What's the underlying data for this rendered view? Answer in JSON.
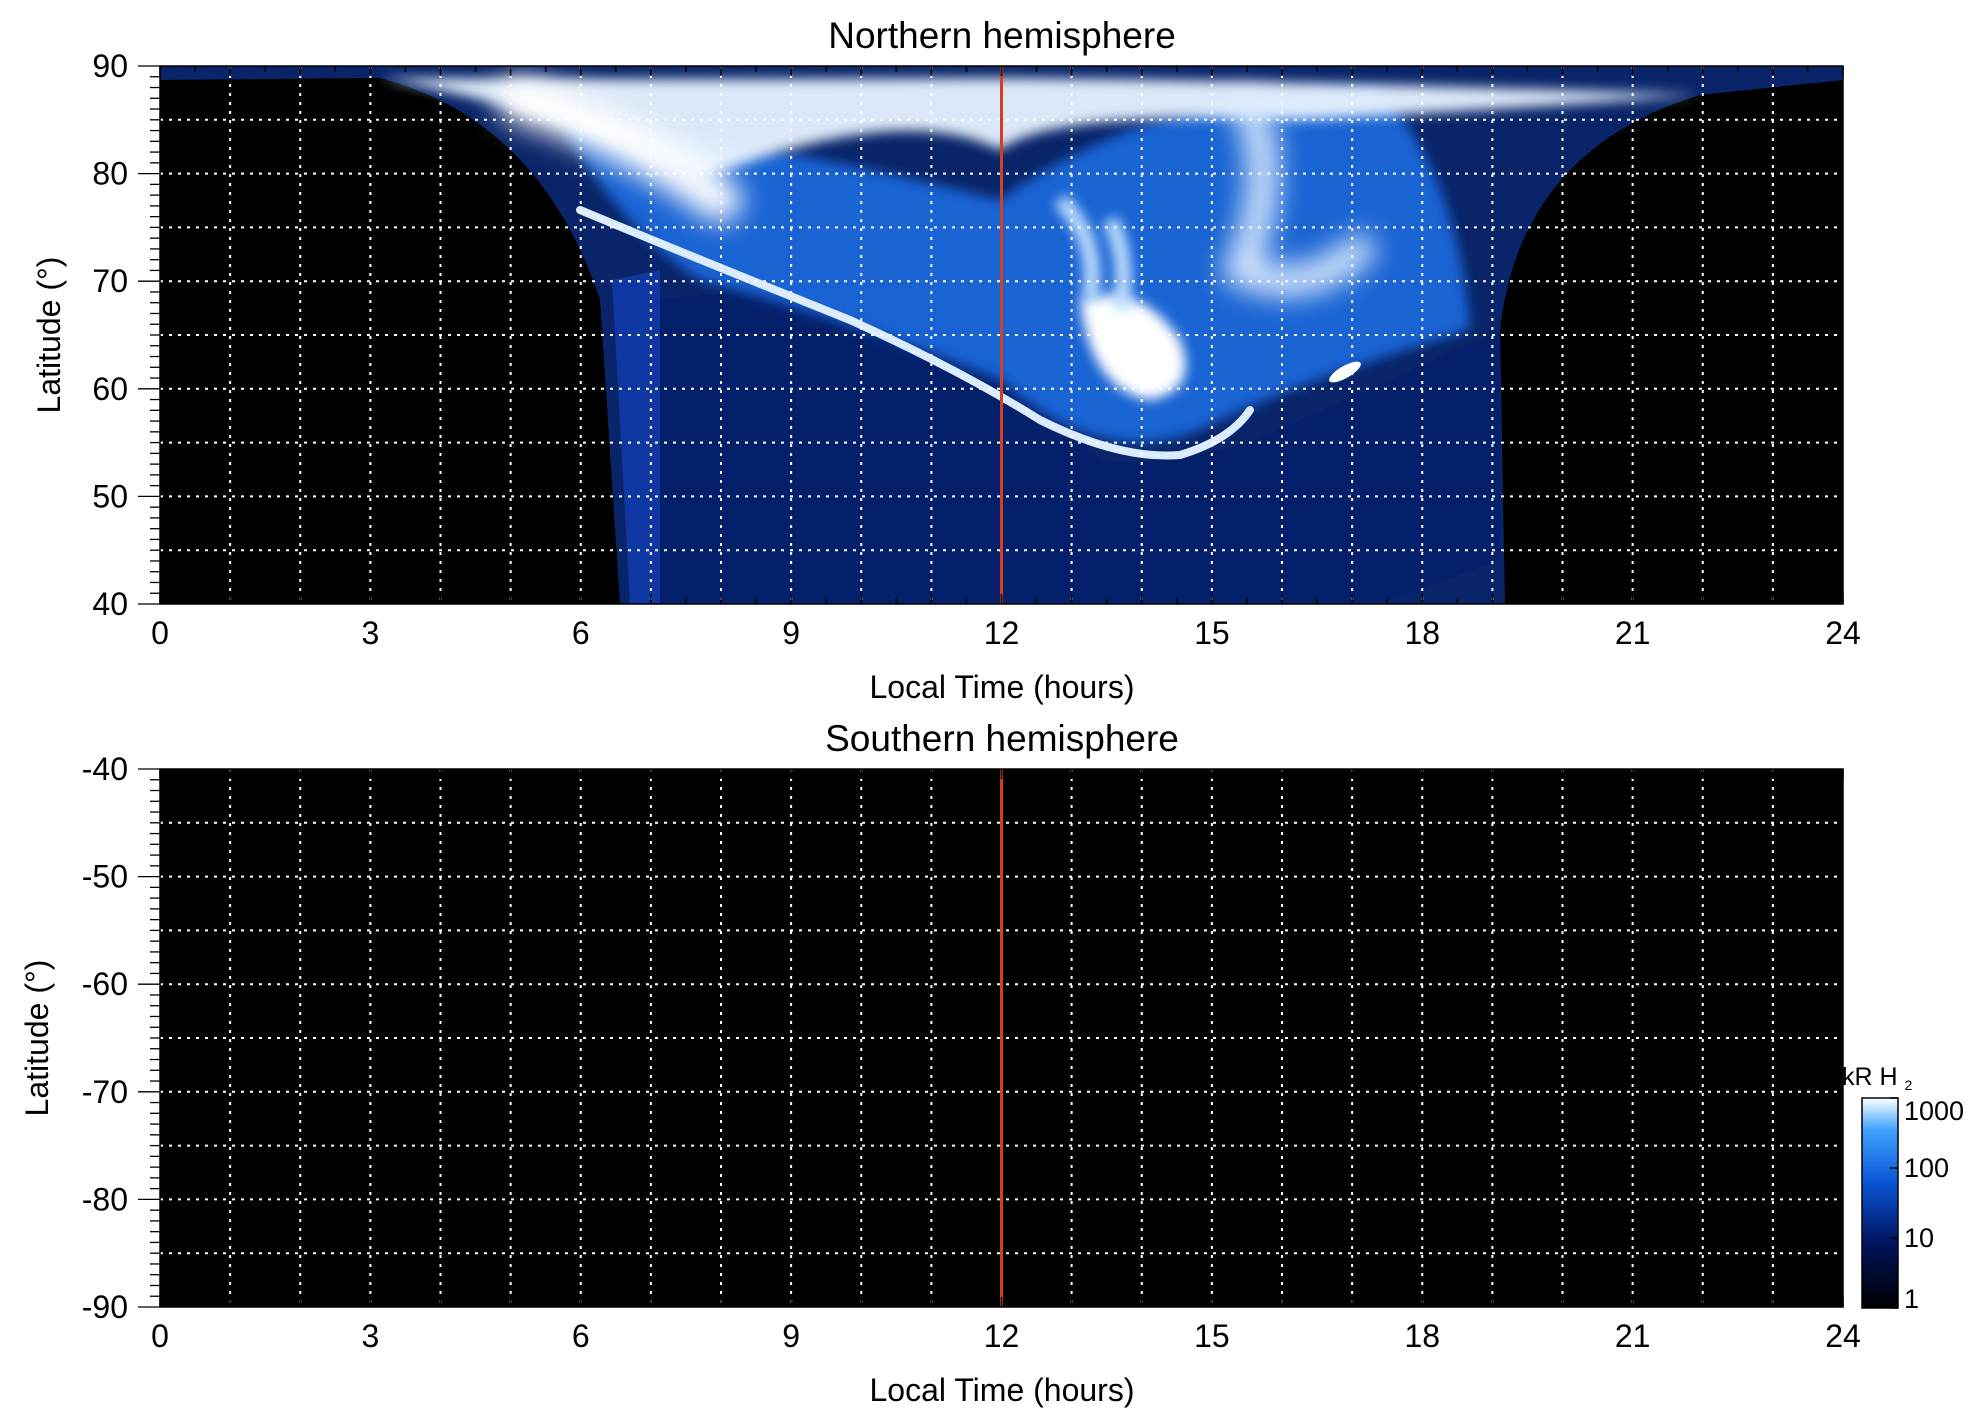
{
  "chart_data": [
    {
      "type": "heatmap",
      "title": "Northern hemisphere",
      "xlabel": "Local Time (hours)",
      "ylabel": "Latitude (°)",
      "xlim": [
        0,
        24
      ],
      "ylim": [
        40,
        90
      ],
      "x_ticks": [
        0,
        3,
        6,
        9,
        12,
        15,
        18,
        21,
        24
      ],
      "y_ticks": [
        40,
        50,
        60,
        70,
        80,
        90
      ],
      "x_gridlines": [
        1,
        2,
        3,
        4,
        5,
        6,
        7,
        8,
        9,
        10,
        11,
        12,
        13,
        14,
        15,
        16,
        17,
        18,
        19,
        20,
        21,
        22,
        23
      ],
      "y_gridlines": [
        45,
        50,
        55,
        60,
        65,
        70,
        75,
        80,
        85
      ],
      "grid": true,
      "reference_line": {
        "x": 12,
        "color": "#d2401f"
      },
      "background_color": "#000000",
      "colormap": [
        "#000000",
        "#00125a",
        "#0a55d6",
        "#3fa3ff",
        "#ffffff"
      ],
      "coverage": {
        "lower_edge_lat": [
          [
            6.5,
            40
          ],
          [
            6.6,
            70
          ],
          [
            7.0,
            71.5
          ],
          [
            9,
            71
          ],
          [
            11,
            68
          ],
          [
            12,
            60
          ],
          [
            13,
            56
          ],
          [
            14,
            54
          ],
          [
            15,
            55
          ],
          [
            16,
            60
          ],
          [
            17,
            63
          ],
          [
            18,
            65
          ],
          [
            19,
            66
          ]
        ],
        "outer_edge_lat": [
          [
            0,
            88.5
          ],
          [
            3,
            88
          ],
          [
            5,
            82
          ],
          [
            6,
            75
          ],
          [
            6.4,
            40
          ],
          [
            19.1,
            40
          ],
          [
            19.3,
            70
          ],
          [
            20,
            80
          ],
          [
            22,
            88
          ],
          [
            24,
            88.5
          ]
        ]
      },
      "features": [
        {
          "name": "main-oval",
          "points": [
            [
              8.6,
              73
            ],
            [
              10.2,
              68
            ],
            [
              12,
              61
            ],
            [
              13,
              57
            ],
            [
              14,
              55.5
            ],
            [
              15,
              57
            ],
            [
              16,
              62
            ],
            [
              16.6,
              66
            ],
            [
              17.5,
              72
            ]
          ],
          "brightness_kR": 1000
        },
        {
          "name": "polar-cap-bright-patch",
          "points": [
            [
              13.8,
              61
            ],
            [
              14.3,
              62
            ],
            [
              14.6,
              60
            ]
          ],
          "brightness_kR": 1000
        },
        {
          "name": "dawn-arc",
          "points": [
            [
              6,
              85
            ],
            [
              7.5,
              82
            ],
            [
              8.4,
              79
            ]
          ],
          "brightness_kR": 1000
        },
        {
          "name": "dusk-arc",
          "points": [
            [
              15.4,
              80
            ],
            [
              16.2,
              74
            ],
            [
              16.8,
              69
            ],
            [
              17.6,
              72
            ]
          ],
          "brightness_kR": 600
        }
      ]
    },
    {
      "type": "heatmap",
      "title": "Southern hemisphere",
      "xlabel": "Local Time (hours)",
      "ylabel": "Latitude (°)",
      "xlim": [
        0,
        24
      ],
      "ylim": [
        -90,
        -40
      ],
      "x_ticks": [
        0,
        3,
        6,
        9,
        12,
        15,
        18,
        21,
        24
      ],
      "y_ticks": [
        -40,
        -50,
        -60,
        -70,
        -80,
        -90
      ],
      "x_gridlines": [
        1,
        2,
        3,
        4,
        5,
        6,
        7,
        8,
        9,
        10,
        11,
        12,
        13,
        14,
        15,
        16,
        17,
        18,
        19,
        20,
        21,
        22,
        23
      ],
      "y_gridlines": [
        -45,
        -50,
        -55,
        -60,
        -65,
        -70,
        -75,
        -80,
        -85
      ],
      "grid": true,
      "reference_line": {
        "x": 12,
        "color": "#d2401f"
      },
      "background_color": "#000000",
      "features": []
    }
  ],
  "colorbar": {
    "title_main": "kR H",
    "title_sub": "2",
    "scale": "log",
    "range": [
      1,
      1000
    ],
    "tick_labels": [
      "1000",
      "100",
      "10",
      "1"
    ],
    "colormap": [
      "#000000",
      "#00125a",
      "#0a55d6",
      "#3fa3ff",
      "#ffffff"
    ]
  }
}
